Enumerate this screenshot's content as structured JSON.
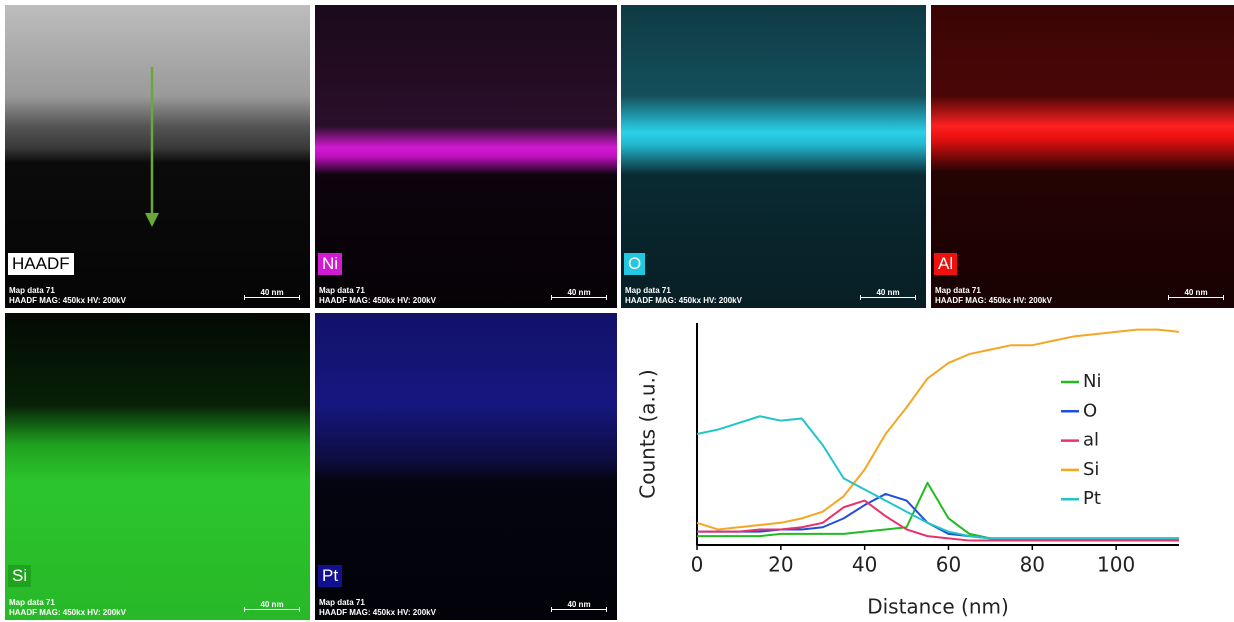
{
  "panels": [
    {
      "label": "HAADF",
      "caption": "Map data 71",
      "info": "HAADF  MAG: 450kx  HV: 200kV",
      "scale": "40 nm"
    },
    {
      "label": "Ni",
      "caption": "Map data 71",
      "info": "HAADF  MAG: 450kx  HV: 200kV",
      "scale": "40 nm"
    },
    {
      "label": "O",
      "caption": "Map data 71",
      "info": "HAADF  MAG: 450kx  HV: 200kV",
      "scale": "40 nm"
    },
    {
      "label": "Al",
      "caption": "Map data 71",
      "info": "HAADF  MAG: 450kx  HV: 200kV",
      "scale": "40 nm"
    },
    {
      "label": "Si",
      "caption": "Map data 71",
      "info": "HAADF  MAG: 450kx  HV: 200kV",
      "scale": "40 nm"
    },
    {
      "label": "Pt",
      "caption": "Map data 71",
      "info": "HAADF  MAG: 450kx  HV: 200kV",
      "scale": "40 nm"
    }
  ],
  "chart_data": {
    "type": "line",
    "x_label": "Distance (nm)",
    "y_label": "Counts (a.u.)",
    "x": [
      0,
      5,
      10,
      15,
      20,
      25,
      30,
      35,
      40,
      45,
      50,
      55,
      60,
      65,
      70,
      75,
      80,
      85,
      90,
      95,
      100,
      105,
      110,
      115
    ],
    "xlim": [
      0,
      115
    ],
    "xticks": [
      0,
      20,
      40,
      60,
      80,
      100
    ],
    "ylim": [
      0,
      1
    ],
    "legend": "right",
    "series": [
      {
        "name": "Ni",
        "color": "#22bb22",
        "values": [
          0.04,
          0.04,
          0.04,
          0.04,
          0.05,
          0.05,
          0.05,
          0.05,
          0.06,
          0.07,
          0.08,
          0.28,
          0.12,
          0.05,
          0.03,
          0.03,
          0.03,
          0.03,
          0.03,
          0.03,
          0.03,
          0.03,
          0.03,
          0.03
        ]
      },
      {
        "name": "O",
        "color": "#1f4fe0",
        "values": [
          0.06,
          0.06,
          0.06,
          0.06,
          0.07,
          0.07,
          0.08,
          0.12,
          0.18,
          0.23,
          0.2,
          0.1,
          0.05,
          0.04,
          0.03,
          0.03,
          0.03,
          0.03,
          0.03,
          0.03,
          0.03,
          0.03,
          0.03,
          0.03
        ]
      },
      {
        "name": "al",
        "color": "#e8336a",
        "values": [
          0.06,
          0.06,
          0.06,
          0.07,
          0.07,
          0.08,
          0.1,
          0.17,
          0.2,
          0.13,
          0.07,
          0.04,
          0.03,
          0.02,
          0.02,
          0.02,
          0.02,
          0.02,
          0.02,
          0.02,
          0.02,
          0.02,
          0.02,
          0.02
        ]
      },
      {
        "name": "Si",
        "color": "#f5a623",
        "values": [
          0.1,
          0.07,
          0.08,
          0.09,
          0.1,
          0.12,
          0.15,
          0.22,
          0.34,
          0.5,
          0.62,
          0.75,
          0.82,
          0.86,
          0.88,
          0.9,
          0.9,
          0.92,
          0.94,
          0.95,
          0.96,
          0.97,
          0.97,
          0.96
        ]
      },
      {
        "name": "Pt",
        "color": "#22c4c8",
        "values": [
          0.5,
          0.52,
          0.55,
          0.58,
          0.56,
          0.57,
          0.45,
          0.3,
          0.25,
          0.2,
          0.15,
          0.1,
          0.06,
          0.04,
          0.03,
          0.03,
          0.03,
          0.03,
          0.03,
          0.03,
          0.03,
          0.03,
          0.03,
          0.03
        ]
      }
    ]
  }
}
